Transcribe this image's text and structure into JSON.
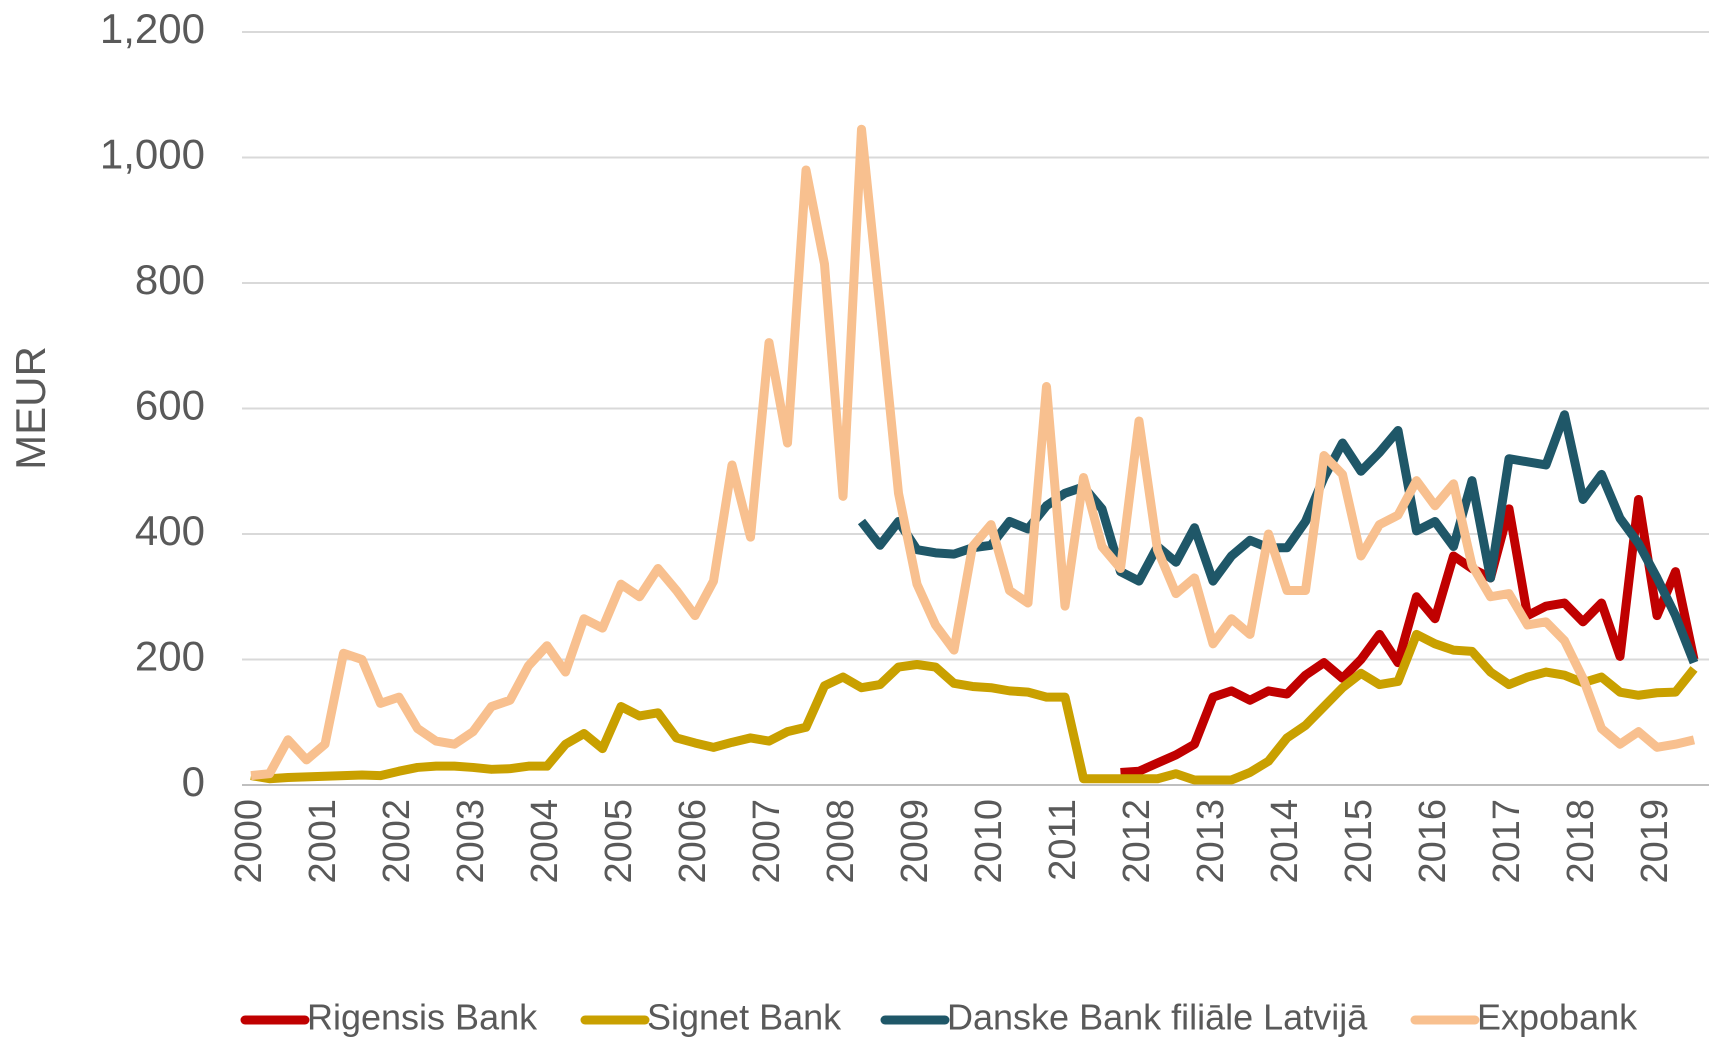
{
  "chart_data": {
    "type": "line",
    "y_label": "MEUR",
    "categories": [
      "2000",
      null,
      null,
      null,
      "2001",
      null,
      null,
      null,
      "2002",
      null,
      null,
      null,
      "2003",
      null,
      null,
      null,
      "2004",
      null,
      null,
      null,
      "2005",
      null,
      null,
      null,
      "2006",
      null,
      null,
      null,
      "2007",
      null,
      null,
      null,
      "2008",
      null,
      null,
      null,
      "2009",
      null,
      null,
      null,
      "2010",
      null,
      null,
      null,
      "2011",
      null,
      null,
      null,
      "2012",
      null,
      null,
      null,
      "2013",
      null,
      null,
      null,
      "2014",
      null,
      null,
      null,
      "2015",
      null,
      null,
      null,
      "2016",
      null,
      null,
      null,
      "2017",
      null,
      null,
      null,
      "2018",
      null,
      null,
      null,
      "2019",
      null,
      null
    ],
    "series": [
      {
        "name": "Rigensis Bank",
        "color": "#c00000",
        "values": [
          null,
          null,
          null,
          null,
          null,
          null,
          null,
          null,
          null,
          null,
          null,
          null,
          null,
          null,
          null,
          null,
          null,
          null,
          null,
          null,
          null,
          null,
          null,
          null,
          null,
          null,
          null,
          null,
          null,
          null,
          null,
          null,
          null,
          null,
          null,
          null,
          null,
          null,
          null,
          null,
          null,
          null,
          null,
          null,
          null,
          null,
          null,
          20,
          22,
          35,
          48,
          65,
          140,
          150,
          135,
          150,
          145,
          175,
          195,
          170,
          200,
          240,
          195,
          300,
          265,
          365,
          345,
          330,
          440,
          270,
          285,
          290,
          260,
          290,
          205,
          455,
          270,
          340,
          200
        ]
      },
      {
        "name": "Signet Bank",
        "color": "#c9a000",
        "values": [
          15,
          10,
          12,
          13,
          14,
          15,
          16,
          15,
          22,
          28,
          30,
          30,
          28,
          25,
          26,
          30,
          30,
          65,
          82,
          58,
          125,
          110,
          115,
          75,
          67,
          60,
          68,
          75,
          70,
          85,
          92,
          158,
          172,
          155,
          160,
          188,
          192,
          188,
          162,
          157,
          155,
          150,
          148,
          140,
          140,
          10,
          10,
          10,
          10,
          10,
          18,
          8,
          8,
          8,
          20,
          38,
          75,
          95,
          125,
          155,
          178,
          160,
          165,
          240,
          225,
          215,
          213,
          180,
          160,
          172,
          180,
          175,
          163,
          172,
          148,
          143,
          147,
          148,
          185
        ]
      },
      {
        "name": "Danske Bank filiāle Latvijā",
        "color": "#1f5768",
        "values": [
          null,
          null,
          null,
          null,
          null,
          null,
          null,
          null,
          null,
          null,
          null,
          null,
          null,
          null,
          null,
          null,
          null,
          null,
          null,
          null,
          null,
          null,
          null,
          null,
          null,
          null,
          null,
          null,
          null,
          null,
          null,
          null,
          null,
          420,
          382,
          420,
          375,
          370,
          368,
          378,
          382,
          420,
          408,
          445,
          465,
          475,
          440,
          340,
          325,
          380,
          355,
          410,
          325,
          365,
          390,
          378,
          378,
          420,
          490,
          545,
          500,
          530,
          565,
          405,
          420,
          380,
          485,
          330,
          520,
          515,
          510,
          590,
          455,
          495,
          425,
          385,
          330,
          270,
          195
        ]
      },
      {
        "name": "Expobank",
        "color": "#f8c08f",
        "values": [
          15,
          18,
          72,
          40,
          65,
          210,
          200,
          130,
          140,
          90,
          70,
          65,
          85,
          125,
          135,
          190,
          222,
          180,
          265,
          250,
          320,
          300,
          345,
          310,
          270,
          325,
          510,
          395,
          705,
          545,
          980,
          830,
          460,
          1045,
          760,
          465,
          320,
          255,
          215,
          380,
          415,
          310,
          290,
          635,
          285,
          490,
          380,
          345,
          580,
          375,
          305,
          330,
          225,
          265,
          240,
          400,
          310,
          310,
          525,
          495,
          365,
          415,
          430,
          485,
          445,
          480,
          350,
          300,
          305,
          255,
          260,
          230,
          170,
          90,
          65,
          85,
          60,
          65,
          72
        ]
      }
    ],
    "ylim": [
      0,
      1200
    ],
    "yticks": [
      0,
      200,
      400,
      600,
      800,
      {
        "value": 1000,
        "label": "1,000"
      },
      {
        "value": 1200,
        "label": "1,200"
      }
    ],
    "grid": true,
    "legend": "bottom"
  }
}
